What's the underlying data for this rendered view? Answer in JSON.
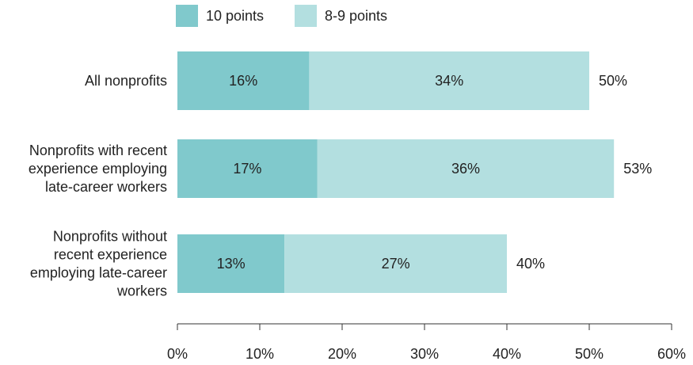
{
  "chart_data": {
    "type": "bar",
    "orientation": "horizontal",
    "stacked": true,
    "title": "",
    "xlabel": "",
    "ylabel": "",
    "xlim": [
      0,
      60
    ],
    "grid": false,
    "legend_position": "top",
    "categories": [
      "All nonprofits",
      "Nonprofits with recent experience employing late-career workers",
      "Nonprofits without recent experience employing late-career workers"
    ],
    "category_lines": [
      [
        "All nonprofits"
      ],
      [
        "Nonprofits with recent",
        "experience employing",
        "late-career workers"
      ],
      [
        "Nonprofits without",
        "recent experience",
        "employing late-career",
        "workers"
      ]
    ],
    "series": [
      {
        "name": "10 points",
        "color": "#80c9cc",
        "values": [
          16,
          17,
          13
        ],
        "labels": [
          "16%",
          "17%",
          "13%"
        ]
      },
      {
        "name": "8-9 points",
        "color": "#b3dfe0",
        "values": [
          34,
          36,
          27
        ],
        "labels": [
          "34%",
          "36%",
          "27%"
        ]
      }
    ],
    "totals": [
      50,
      53,
      40
    ],
    "total_labels": [
      "50%",
      "53%",
      "40%"
    ],
    "x_ticks": [
      0,
      10,
      20,
      30,
      40,
      50,
      60
    ],
    "x_tick_labels": [
      "0%",
      "10%",
      "20%",
      "30%",
      "40%",
      "50%",
      "60%"
    ]
  }
}
